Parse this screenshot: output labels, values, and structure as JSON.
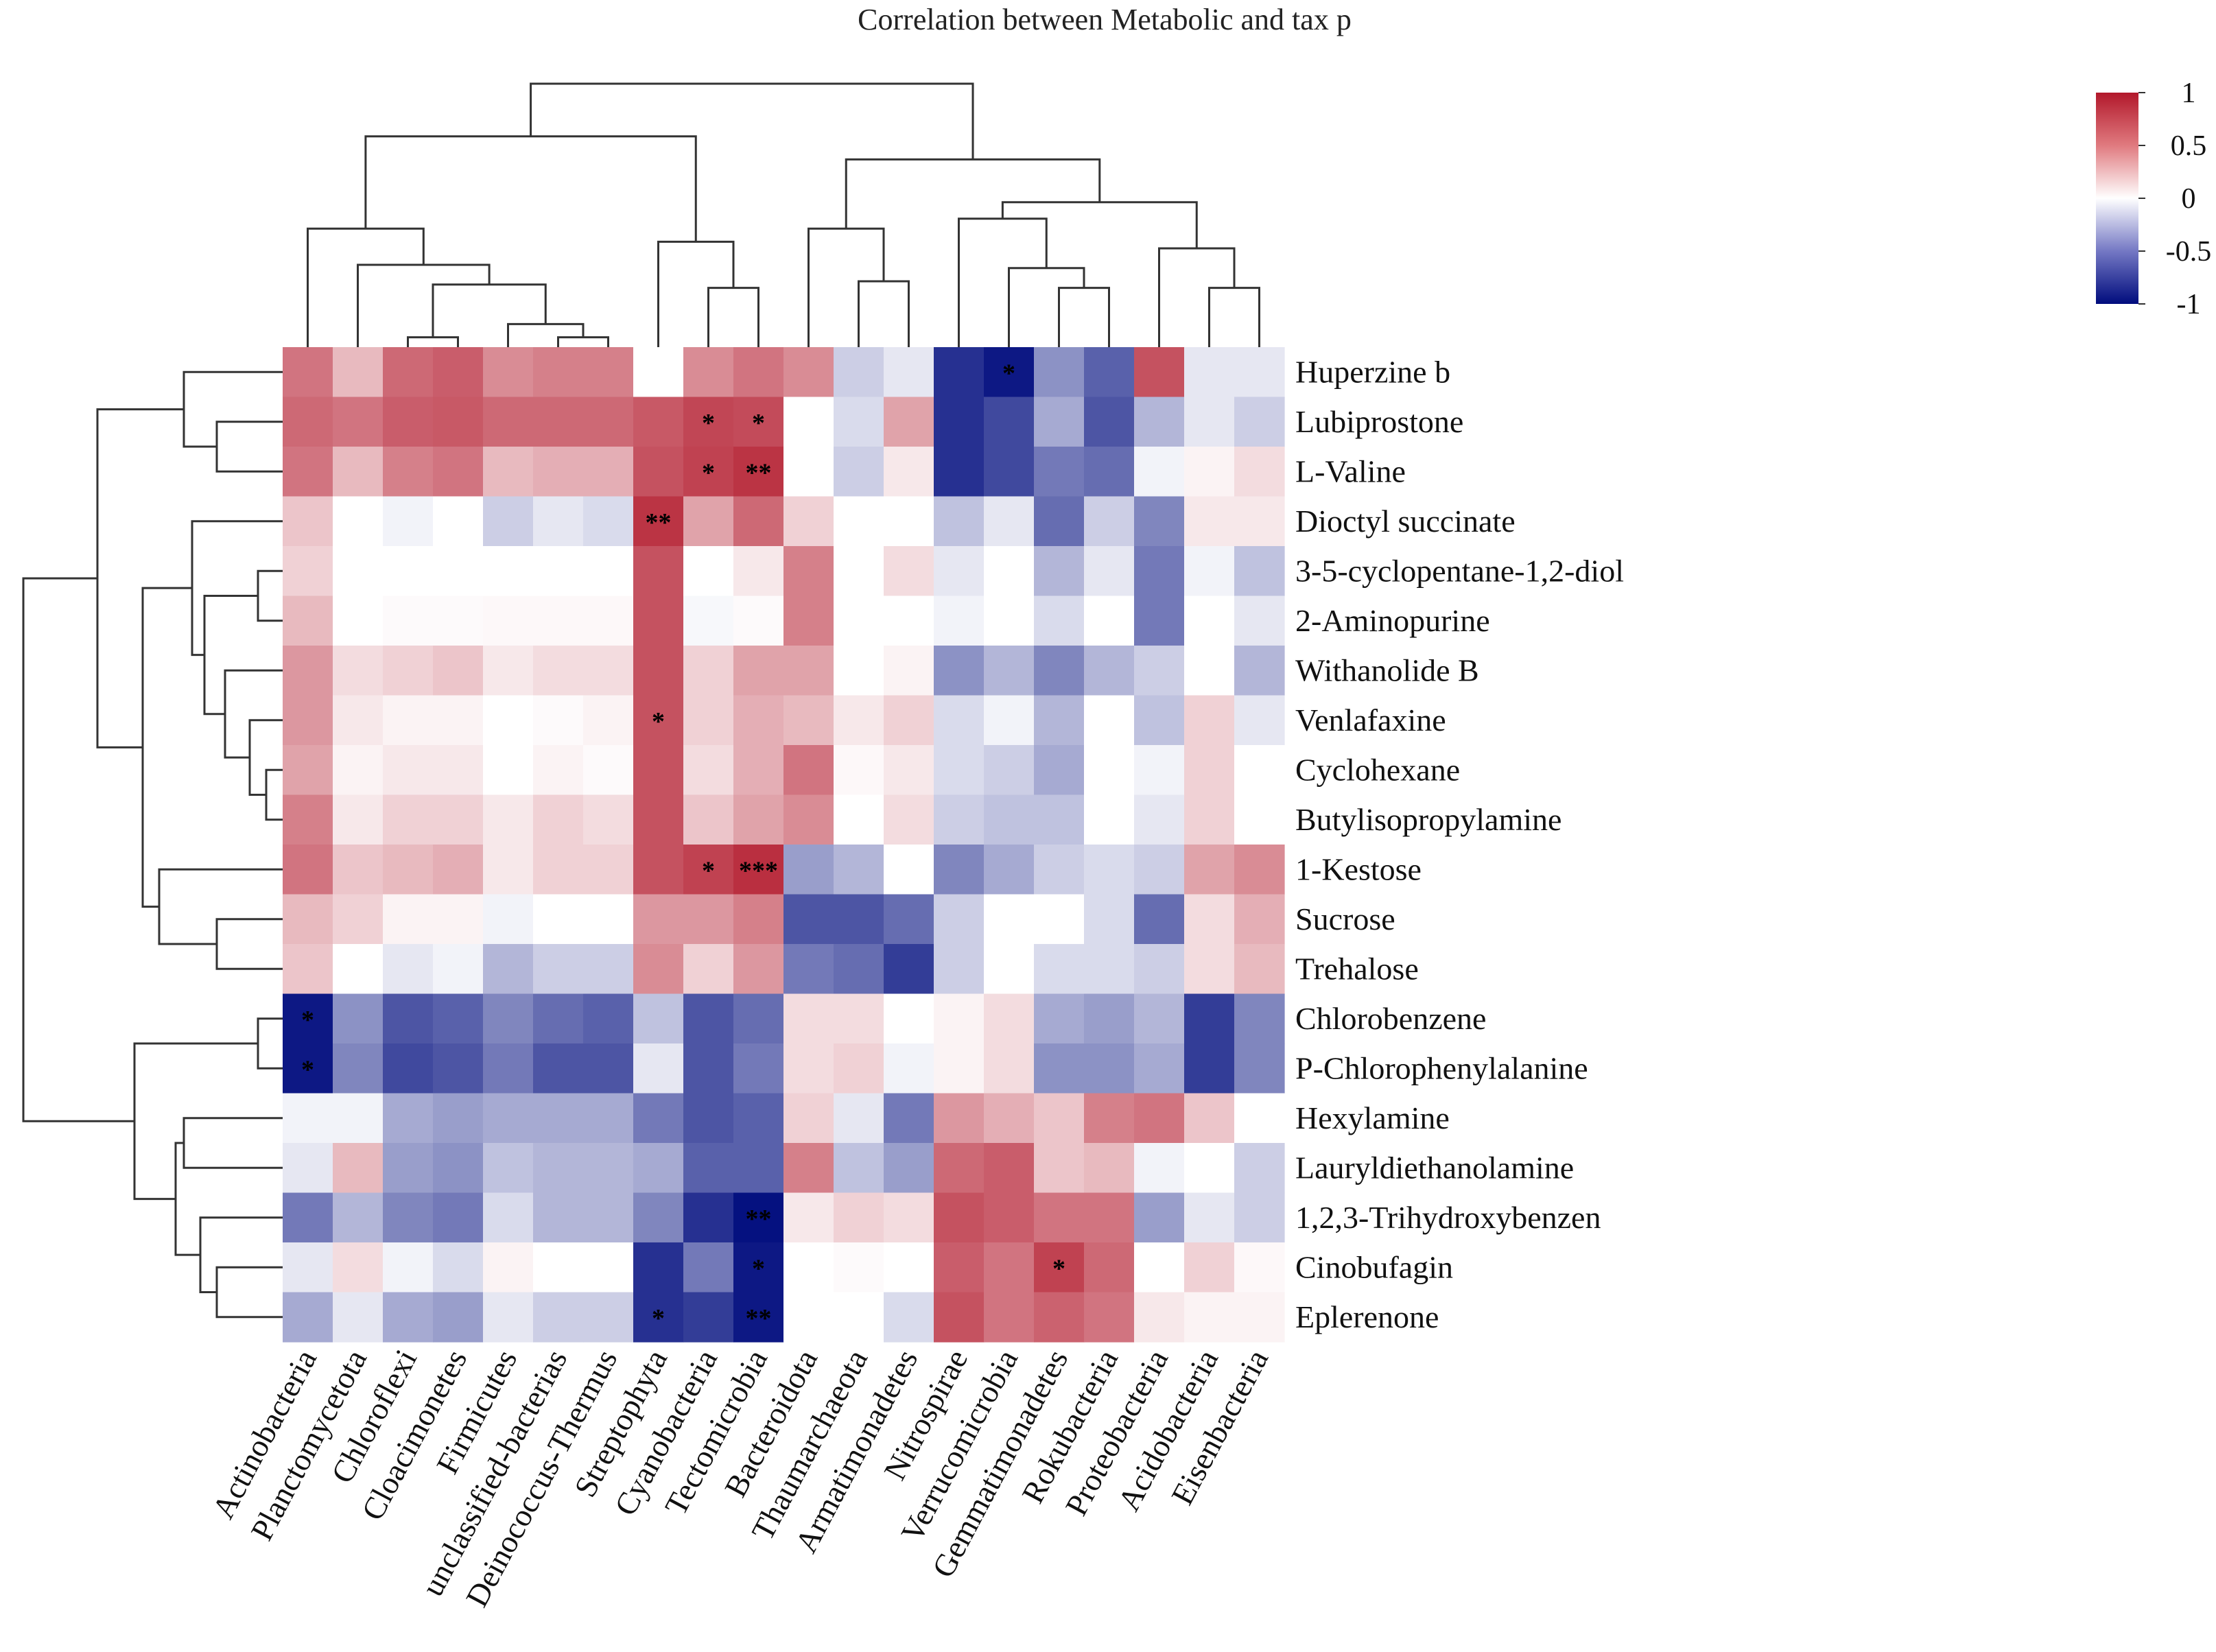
{
  "chart_data": {
    "type": "heatmap",
    "title": "Correlation between Metabolic and tax p",
    "rows": [
      "Huperzine b",
      "Lubiprostone",
      "L-Valine",
      "Dioctyl succinate",
      "3-5-cyclopentane-1,2-diol",
      "2-Aminopurine",
      "Withanolide B",
      "Venlafaxine",
      "Cyclohexane",
      "Butylisopropylamine",
      "1-Kestose",
      "Sucrose",
      "Trehalose",
      "Chlorobenzene",
      "P-Chlorophenylalanine",
      "Hexylamine",
      "Lauryldiethanolamine",
      "1,2,3-Trihydroxybenzen",
      "Cinobufagin",
      "Eplerenone"
    ],
    "columns": [
      "Actinobacteria",
      "Planctomycetota",
      "Chloroflexi",
      "Cloacimonetes",
      "Firmicutes",
      "unclassified-bacterias",
      "Deinococcus-Thermus",
      "Streptophyta",
      "Cyanobacteria",
      "Tectomicrobia",
      "Bacteroidota",
      "Thaumarchaeota",
      "Armatimonadetes",
      "Nitrospirae",
      "Verrucomicrobia",
      "Gemmatimonadetes",
      "Rokubacteria",
      "Proteobacteria",
      "Acidobacteria",
      "Eisenbacteria"
    ],
    "values": [
      [
        0.6,
        0.3,
        0.65,
        0.7,
        0.5,
        0.55,
        0.55,
        0.0,
        0.5,
        0.6,
        0.5,
        -0.2,
        -0.1,
        -0.85,
        -0.95,
        -0.45,
        -0.65,
        0.75,
        -0.1,
        -0.1
      ],
      [
        0.65,
        0.6,
        0.7,
        0.72,
        0.65,
        0.65,
        0.65,
        0.72,
        0.8,
        0.78,
        0.0,
        -0.15,
        0.4,
        -0.85,
        -0.75,
        -0.35,
        -0.7,
        -0.3,
        -0.1,
        -0.2
      ],
      [
        0.6,
        0.3,
        0.55,
        0.6,
        0.3,
        0.35,
        0.35,
        0.75,
        0.82,
        0.88,
        0.0,
        -0.2,
        0.1,
        -0.85,
        -0.75,
        -0.55,
        -0.6,
        -0.05,
        0.05,
        0.15
      ],
      [
        0.25,
        0.0,
        -0.05,
        0.0,
        -0.2,
        -0.1,
        -0.15,
        0.88,
        0.4,
        0.65,
        0.2,
        0.0,
        0.0,
        -0.25,
        -0.1,
        -0.6,
        -0.2,
        -0.5,
        0.1,
        0.1
      ],
      [
        0.2,
        0.0,
        0.0,
        0.0,
        0.0,
        0.0,
        0.0,
        0.75,
        0.0,
        0.1,
        0.55,
        0.0,
        0.15,
        -0.1,
        0.0,
        -0.3,
        -0.1,
        -0.55,
        -0.05,
        -0.25
      ],
      [
        0.3,
        0.0,
        0.02,
        0.02,
        0.03,
        0.03,
        0.03,
        0.75,
        -0.03,
        0.02,
        0.55,
        0.0,
        0.0,
        -0.05,
        0.0,
        -0.15,
        0.0,
        -0.55,
        0.0,
        -0.1
      ],
      [
        0.45,
        0.15,
        0.2,
        0.25,
        0.1,
        0.15,
        0.15,
        0.75,
        0.2,
        0.4,
        0.4,
        0.0,
        0.05,
        -0.45,
        -0.3,
        -0.5,
        -0.3,
        -0.2,
        0.0,
        -0.3
      ],
      [
        0.45,
        0.1,
        0.05,
        0.05,
        0.0,
        0.02,
        0.05,
        0.75,
        0.2,
        0.35,
        0.3,
        0.1,
        0.2,
        -0.15,
        -0.05,
        -0.3,
        0.0,
        -0.25,
        0.2,
        -0.1
      ],
      [
        0.4,
        0.05,
        0.1,
        0.1,
        0.0,
        0.05,
        0.02,
        0.75,
        0.15,
        0.35,
        0.6,
        0.03,
        0.1,
        -0.15,
        -0.2,
        -0.35,
        0.0,
        -0.05,
        0.2,
        0.0
      ],
      [
        0.55,
        0.1,
        0.2,
        0.2,
        0.1,
        0.2,
        0.15,
        0.75,
        0.25,
        0.4,
        0.5,
        0.0,
        0.15,
        -0.2,
        -0.25,
        -0.25,
        0.0,
        -0.1,
        0.2,
        0.0
      ],
      [
        0.6,
        0.25,
        0.3,
        0.35,
        0.1,
        0.2,
        0.2,
        0.75,
        0.82,
        0.9,
        -0.4,
        -0.3,
        0.0,
        -0.5,
        -0.35,
        -0.2,
        -0.15,
        -0.2,
        0.4,
        0.5
      ],
      [
        0.3,
        0.2,
        0.05,
        0.05,
        -0.05,
        0.0,
        0.0,
        0.45,
        0.45,
        0.55,
        -0.7,
        -0.7,
        -0.6,
        -0.2,
        0.0,
        0.0,
        -0.15,
        -0.6,
        0.15,
        0.35
      ],
      [
        0.25,
        0.0,
        -0.1,
        -0.05,
        -0.3,
        -0.2,
        -0.2,
        0.5,
        0.2,
        0.45,
        -0.55,
        -0.6,
        -0.8,
        -0.2,
        0.0,
        -0.15,
        -0.15,
        -0.2,
        0.15,
        0.3
      ],
      [
        -0.95,
        -0.45,
        -0.7,
        -0.65,
        -0.5,
        -0.6,
        -0.65,
        -0.25,
        -0.7,
        -0.6,
        0.15,
        0.15,
        0.0,
        0.05,
        0.15,
        -0.35,
        -0.4,
        -0.3,
        -0.8,
        -0.5
      ],
      [
        -0.95,
        -0.5,
        -0.75,
        -0.7,
        -0.55,
        -0.7,
        -0.7,
        -0.1,
        -0.7,
        -0.55,
        0.15,
        0.2,
        -0.05,
        0.05,
        0.15,
        -0.45,
        -0.45,
        -0.35,
        -0.8,
        -0.5
      ],
      [
        -0.05,
        -0.05,
        -0.35,
        -0.4,
        -0.35,
        -0.35,
        -0.35,
        -0.55,
        -0.7,
        -0.65,
        0.2,
        -0.1,
        -0.55,
        0.45,
        0.35,
        0.25,
        0.55,
        0.6,
        0.25,
        0.0
      ],
      [
        -0.1,
        0.3,
        -0.4,
        -0.45,
        -0.25,
        -0.3,
        -0.3,
        -0.35,
        -0.65,
        -0.65,
        0.55,
        -0.25,
        -0.4,
        0.65,
        0.7,
        0.25,
        0.3,
        -0.05,
        0.0,
        -0.2
      ],
      [
        -0.55,
        -0.3,
        -0.5,
        -0.55,
        -0.15,
        -0.3,
        -0.3,
        -0.5,
        -0.85,
        -0.98,
        0.1,
        0.2,
        0.15,
        0.75,
        0.7,
        0.6,
        0.6,
        -0.4,
        -0.1,
        -0.2
      ],
      [
        -0.1,
        0.15,
        -0.05,
        -0.15,
        0.05,
        0.0,
        0.0,
        -0.85,
        -0.55,
        -0.95,
        0.0,
        0.02,
        0.0,
        0.7,
        0.6,
        0.82,
        0.65,
        0.0,
        0.2,
        0.03
      ],
      [
        -0.35,
        -0.1,
        -0.35,
        -0.4,
        -0.1,
        -0.2,
        -0.2,
        -0.85,
        -0.8,
        -0.95,
        0.0,
        0.0,
        -0.15,
        0.75,
        0.6,
        0.68,
        0.6,
        0.1,
        0.05,
        0.05
      ]
    ],
    "stars": [
      {
        "row": 0,
        "col": 14,
        "label": "*"
      },
      {
        "row": 1,
        "col": 8,
        "label": "*"
      },
      {
        "row": 1,
        "col": 9,
        "label": "*"
      },
      {
        "row": 2,
        "col": 8,
        "label": "*"
      },
      {
        "row": 2,
        "col": 9,
        "label": "**"
      },
      {
        "row": 3,
        "col": 7,
        "label": "**"
      },
      {
        "row": 7,
        "col": 7,
        "label": "*"
      },
      {
        "row": 10,
        "col": 8,
        "label": "*"
      },
      {
        "row": 10,
        "col": 9,
        "label": "***"
      },
      {
        "row": 13,
        "col": 0,
        "label": "*"
      },
      {
        "row": 14,
        "col": 0,
        "label": "*"
      },
      {
        "row": 17,
        "col": 9,
        "label": "**"
      },
      {
        "row": 18,
        "col": 9,
        "label": "*"
      },
      {
        "row": 18,
        "col": 15,
        "label": "*"
      },
      {
        "row": 19,
        "col": 7,
        "label": "*"
      },
      {
        "row": 19,
        "col": 9,
        "label": "**"
      }
    ],
    "colorbar": {
      "range": [
        -1,
        1
      ],
      "ticks": [
        "1",
        "0.5",
        "0",
        "-0.5",
        "-1"
      ],
      "colors": {
        "high": "#b2182b",
        "mid": "#ffffff",
        "low": "#000c7d"
      }
    }
  }
}
